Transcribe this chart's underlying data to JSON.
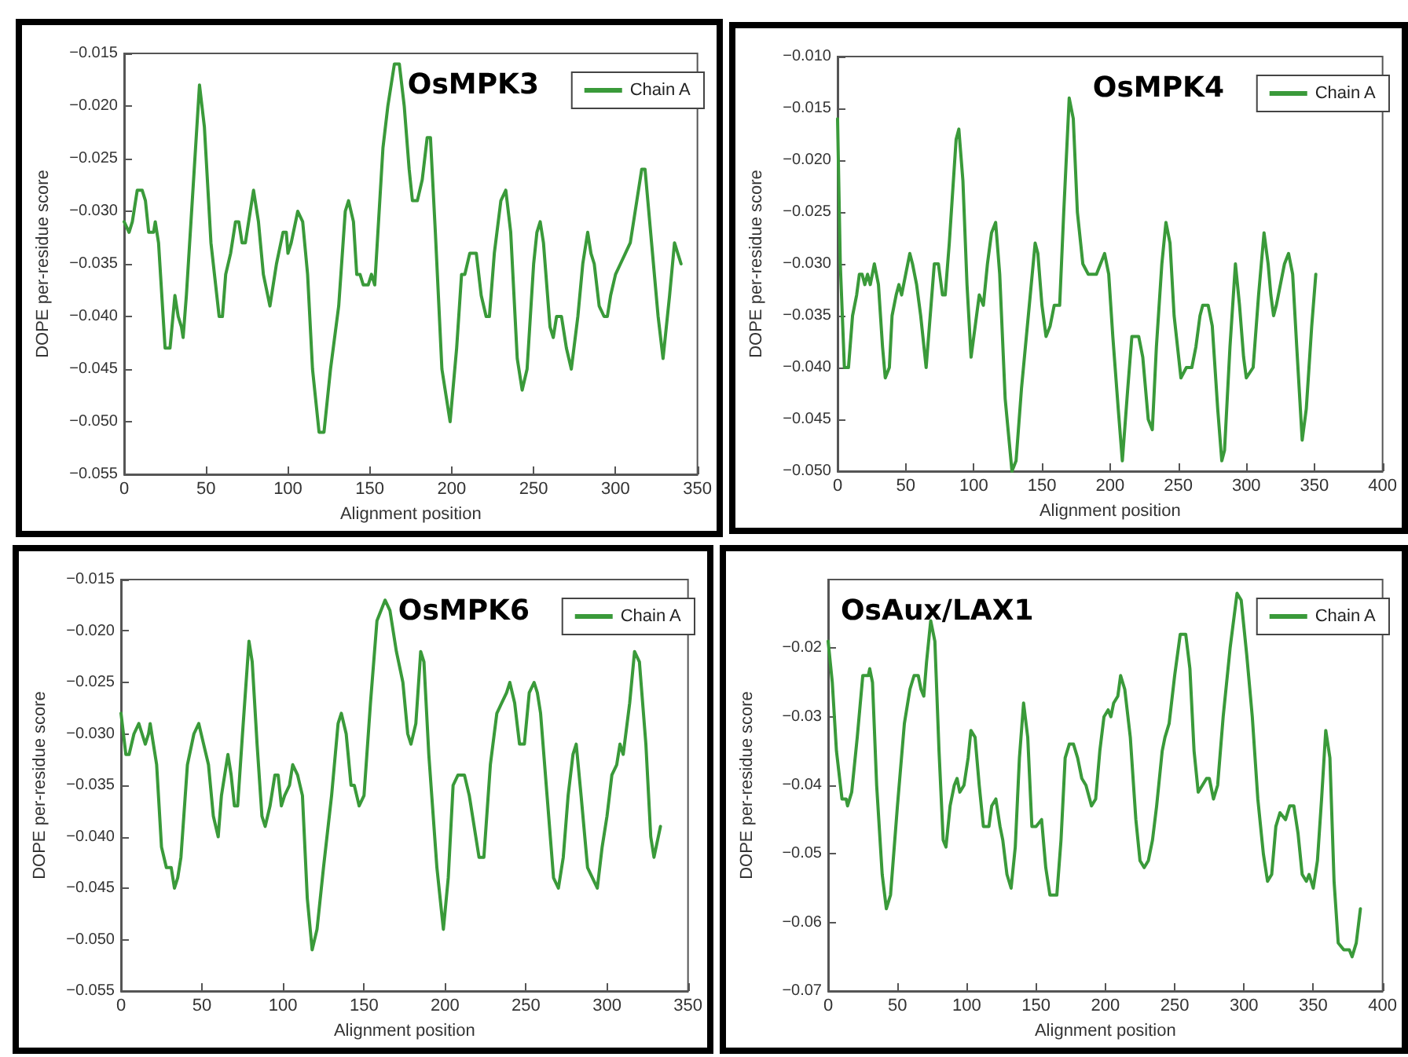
{
  "chart_data": [
    {
      "type": "line",
      "title": "OsMPK3",
      "xlabel": "Alignment position",
      "ylabel": "DOPE per-residue score",
      "xlim": [
        0,
        350
      ],
      "xticks": [
        0,
        50,
        100,
        150,
        200,
        250,
        300,
        350
      ],
      "ylim": [
        -0.055,
        -0.015
      ],
      "yticks": [
        {
          "value": -0.055,
          "label": "−0.055"
        },
        {
          "value": -0.05,
          "label": "−0.050"
        },
        {
          "value": -0.045,
          "label": "−0.045"
        },
        {
          "value": -0.04,
          "label": "−0.040"
        },
        {
          "value": -0.035,
          "label": "−0.035"
        },
        {
          "value": -0.03,
          "label": "−0.030"
        },
        {
          "value": -0.025,
          "label": "−0.025"
        },
        {
          "value": -0.02,
          "label": "−0.020"
        },
        {
          "value": -0.015,
          "label": "−0.015"
        }
      ],
      "legend": "top right",
      "grid": false,
      "marker": "none",
      "line_style": "solid",
      "x": [
        0,
        3,
        5,
        8,
        11,
        13,
        15,
        18,
        19,
        21,
        25,
        28,
        31,
        33,
        35,
        36,
        38,
        42,
        46,
        49,
        53,
        58,
        60,
        62,
        65,
        68,
        70,
        72,
        74,
        76,
        79,
        80,
        82,
        85,
        89,
        93,
        97,
        99,
        100,
        102,
        106,
        109,
        112,
        115,
        119,
        122,
        126,
        131,
        135,
        137,
        140,
        142,
        144,
        146,
        149,
        151,
        153,
        158,
        161,
        165,
        168,
        171,
        174,
        176,
        179,
        182,
        185,
        187,
        190,
        194,
        199,
        203,
        206,
        208,
        211,
        215,
        218,
        221,
        223,
        226,
        230,
        233,
        236,
        240,
        243,
        246,
        250,
        252,
        254,
        256,
        260,
        262,
        264,
        267,
        270,
        273,
        277,
        280,
        283,
        285,
        287,
        290,
        293,
        295,
        297,
        300,
        303,
        306,
        309,
        312,
        316,
        318,
        322,
        326,
        329,
        333,
        336,
        338,
        340
      ],
      "series": [
        {
          "name": "Chain A",
          "color": "#3a9a3a",
          "values": [
            -0.031,
            -0.032,
            -0.031,
            -0.028,
            -0.028,
            -0.029,
            -0.032,
            -0.032,
            -0.031,
            -0.033,
            -0.043,
            -0.043,
            -0.038,
            -0.04,
            -0.041,
            -0.042,
            -0.038,
            -0.028,
            -0.018,
            -0.022,
            -0.033,
            -0.04,
            -0.04,
            -0.036,
            -0.034,
            -0.031,
            -0.031,
            -0.033,
            -0.033,
            -0.031,
            -0.028,
            -0.029,
            -0.031,
            -0.036,
            -0.039,
            -0.035,
            -0.032,
            -0.032,
            -0.034,
            -0.033,
            -0.03,
            -0.031,
            -0.036,
            -0.045,
            -0.051,
            -0.051,
            -0.045,
            -0.039,
            -0.03,
            -0.029,
            -0.031,
            -0.036,
            -0.036,
            -0.037,
            -0.037,
            -0.036,
            -0.037,
            -0.024,
            -0.02,
            -0.016,
            -0.016,
            -0.02,
            -0.026,
            -0.029,
            -0.029,
            -0.027,
            -0.023,
            -0.023,
            -0.032,
            -0.045,
            -0.05,
            -0.043,
            -0.036,
            -0.036,
            -0.034,
            -0.034,
            -0.038,
            -0.04,
            -0.04,
            -0.034,
            -0.029,
            -0.028,
            -0.032,
            -0.044,
            -0.047,
            -0.045,
            -0.035,
            -0.032,
            -0.031,
            -0.033,
            -0.041,
            -0.042,
            -0.04,
            -0.04,
            -0.043,
            -0.045,
            -0.04,
            -0.035,
            -0.032,
            -0.034,
            -0.035,
            -0.039,
            -0.04,
            -0.04,
            -0.038,
            -0.036,
            -0.035,
            -0.034,
            -0.033,
            -0.03,
            -0.026,
            -0.026,
            -0.033,
            -0.04,
            -0.044,
            -0.038,
            -0.033,
            -0.034,
            -0.035
          ]
        }
      ]
    },
    {
      "type": "line",
      "title": "OsMPK4",
      "xlabel": "Alignment position",
      "ylabel": "DOPE per-residue score",
      "xlim": [
        0,
        400
      ],
      "xticks": [
        0,
        50,
        100,
        150,
        200,
        250,
        300,
        350,
        400
      ],
      "ylim": [
        -0.05,
        -0.01
      ],
      "yticks": [
        {
          "value": -0.05,
          "label": "−0.050"
        },
        {
          "value": -0.045,
          "label": "−0.045"
        },
        {
          "value": -0.04,
          "label": "−0.040"
        },
        {
          "value": -0.035,
          "label": "−0.035"
        },
        {
          "value": -0.03,
          "label": "−0.030"
        },
        {
          "value": -0.025,
          "label": "−0.025"
        },
        {
          "value": -0.02,
          "label": "−0.020"
        },
        {
          "value": -0.015,
          "label": "−0.015"
        },
        {
          "value": -0.01,
          "label": "−0.010"
        }
      ],
      "legend": "top right",
      "grid": false,
      "marker": "none",
      "line_style": "solid",
      "x": [
        0,
        2,
        5,
        8,
        11,
        14,
        16,
        18,
        20,
        22,
        24,
        27,
        30,
        33,
        35,
        38,
        40,
        43,
        45,
        47,
        50,
        53,
        55,
        58,
        61,
        65,
        68,
        71,
        74,
        77,
        79,
        82,
        87,
        89,
        92,
        95,
        98,
        101,
        104,
        107,
        110,
        113,
        116,
        119,
        123,
        128,
        131,
        135,
        140,
        145,
        147,
        150,
        153,
        156,
        159,
        163,
        166,
        170,
        173,
        176,
        180,
        184,
        190,
        193,
        196,
        199,
        202,
        206,
        209,
        213,
        216,
        221,
        224,
        228,
        231,
        234,
        238,
        241,
        244,
        247,
        252,
        256,
        260,
        263,
        266,
        268,
        272,
        275,
        279,
        282,
        284,
        288,
        292,
        295,
        298,
        300,
        305,
        309,
        313,
        316,
        318,
        320,
        322,
        325,
        328,
        331,
        334,
        337,
        341,
        344,
        348,
        351
      ],
      "series": [
        {
          "name": "Chain A",
          "color": "#3a9a3a",
          "values": [
            -0.016,
            -0.03,
            -0.04,
            -0.04,
            -0.035,
            -0.033,
            -0.031,
            -0.031,
            -0.032,
            -0.031,
            -0.032,
            -0.03,
            -0.032,
            -0.038,
            -0.041,
            -0.04,
            -0.035,
            -0.033,
            -0.032,
            -0.033,
            -0.031,
            -0.029,
            -0.03,
            -0.032,
            -0.035,
            -0.04,
            -0.035,
            -0.03,
            -0.03,
            -0.033,
            -0.033,
            -0.028,
            -0.018,
            -0.017,
            -0.022,
            -0.032,
            -0.039,
            -0.036,
            -0.033,
            -0.034,
            -0.03,
            -0.027,
            -0.026,
            -0.031,
            -0.043,
            -0.05,
            -0.049,
            -0.042,
            -0.035,
            -0.028,
            -0.029,
            -0.034,
            -0.037,
            -0.036,
            -0.034,
            -0.034,
            -0.025,
            -0.014,
            -0.016,
            -0.025,
            -0.03,
            -0.031,
            -0.031,
            -0.03,
            -0.029,
            -0.031,
            -0.037,
            -0.044,
            -0.049,
            -0.042,
            -0.037,
            -0.037,
            -0.039,
            -0.045,
            -0.046,
            -0.038,
            -0.03,
            -0.026,
            -0.028,
            -0.035,
            -0.041,
            -0.04,
            -0.04,
            -0.038,
            -0.035,
            -0.034,
            -0.034,
            -0.036,
            -0.044,
            -0.049,
            -0.048,
            -0.038,
            -0.03,
            -0.034,
            -0.039,
            -0.041,
            -0.04,
            -0.033,
            -0.027,
            -0.03,
            -0.033,
            -0.035,
            -0.034,
            -0.032,
            -0.03,
            -0.029,
            -0.031,
            -0.038,
            -0.047,
            -0.044,
            -0.036,
            -0.031
          ]
        }
      ]
    },
    {
      "type": "line",
      "title": "OsMPK6",
      "xlabel": "Alignment position",
      "ylabel": "DOPE per-residue score",
      "xlim": [
        0,
        350
      ],
      "xticks": [
        0,
        50,
        100,
        150,
        200,
        250,
        300,
        350
      ],
      "ylim": [
        -0.055,
        -0.015
      ],
      "yticks": [
        {
          "value": -0.055,
          "label": "−0.055"
        },
        {
          "value": -0.05,
          "label": "−0.050"
        },
        {
          "value": -0.045,
          "label": "−0.045"
        },
        {
          "value": -0.04,
          "label": "−0.040"
        },
        {
          "value": -0.035,
          "label": "−0.035"
        },
        {
          "value": -0.03,
          "label": "−0.030"
        },
        {
          "value": -0.025,
          "label": "−0.025"
        },
        {
          "value": -0.02,
          "label": "−0.020"
        },
        {
          "value": -0.015,
          "label": "−0.015"
        }
      ],
      "legend": "top right",
      "grid": false,
      "marker": "none",
      "line_style": "solid",
      "x": [
        0,
        3,
        5,
        8,
        11,
        13,
        15,
        17,
        18,
        20,
        22,
        25,
        28,
        31,
        33,
        35,
        37,
        41,
        45,
        48,
        51,
        54,
        57,
        60,
        62,
        66,
        68,
        70,
        72,
        75,
        79,
        81,
        84,
        87,
        89,
        92,
        95,
        97,
        99,
        101,
        104,
        106,
        109,
        112,
        115,
        118,
        121,
        125,
        130,
        134,
        136,
        139,
        142,
        144,
        147,
        150,
        154,
        158,
        163,
        166,
        170,
        174,
        177,
        179,
        182,
        185,
        187,
        190,
        195,
        199,
        202,
        205,
        208,
        212,
        215,
        219,
        221,
        224,
        228,
        232,
        235,
        238,
        240,
        243,
        246,
        249,
        252,
        255,
        257,
        259,
        263,
        267,
        270,
        273,
        276,
        279,
        281,
        284,
        288,
        291,
        294,
        297,
        300,
        303,
        306,
        308,
        310,
        314,
        317,
        320,
        324,
        327,
        329,
        333
      ],
      "series": [
        {
          "name": "Chain A",
          "color": "#3a9a3a",
          "values": [
            -0.028,
            -0.032,
            -0.032,
            -0.03,
            -0.029,
            -0.03,
            -0.031,
            -0.03,
            -0.029,
            -0.031,
            -0.033,
            -0.041,
            -0.043,
            -0.043,
            -0.045,
            -0.044,
            -0.042,
            -0.033,
            -0.03,
            -0.029,
            -0.031,
            -0.033,
            -0.038,
            -0.04,
            -0.036,
            -0.032,
            -0.034,
            -0.037,
            -0.037,
            -0.03,
            -0.021,
            -0.023,
            -0.031,
            -0.038,
            -0.039,
            -0.037,
            -0.034,
            -0.034,
            -0.037,
            -0.036,
            -0.035,
            -0.033,
            -0.034,
            -0.036,
            -0.046,
            -0.051,
            -0.049,
            -0.043,
            -0.036,
            -0.029,
            -0.028,
            -0.03,
            -0.035,
            -0.035,
            -0.037,
            -0.036,
            -0.027,
            -0.019,
            -0.017,
            -0.018,
            -0.022,
            -0.025,
            -0.03,
            -0.031,
            -0.029,
            -0.022,
            -0.023,
            -0.032,
            -0.043,
            -0.049,
            -0.044,
            -0.035,
            -0.034,
            -0.034,
            -0.036,
            -0.04,
            -0.042,
            -0.042,
            -0.033,
            -0.028,
            -0.027,
            -0.026,
            -0.025,
            -0.027,
            -0.031,
            -0.031,
            -0.026,
            -0.025,
            -0.026,
            -0.028,
            -0.036,
            -0.044,
            -0.045,
            -0.042,
            -0.036,
            -0.032,
            -0.031,
            -0.036,
            -0.043,
            -0.044,
            -0.045,
            -0.041,
            -0.038,
            -0.034,
            -0.033,
            -0.031,
            -0.032,
            -0.027,
            -0.022,
            -0.023,
            -0.031,
            -0.04,
            -0.042,
            -0.039
          ]
        }
      ]
    },
    {
      "type": "line",
      "title": "OsAux/LAX1",
      "xlabel": "Alignment position",
      "ylabel": "DOPE per-residue score",
      "xlim": [
        0,
        400
      ],
      "xticks": [
        0,
        50,
        100,
        150,
        200,
        250,
        300,
        350,
        400
      ],
      "ylim": [
        -0.07,
        -0.01
      ],
      "yticks": [
        -0.07,
        -0.06,
        -0.05,
        -0.04,
        -0.03,
        -0.02
      ],
      "legend": "top right",
      "grid": false,
      "marker": "none",
      "line_style": "solid",
      "x": [
        0,
        3,
        6,
        10,
        13,
        14,
        17,
        21,
        25,
        29,
        30,
        32,
        35,
        39,
        42,
        45,
        50,
        55,
        59,
        62,
        65,
        67,
        69,
        71,
        74,
        77,
        80,
        83,
        85,
        88,
        91,
        93,
        95,
        98,
        101,
        103,
        106,
        109,
        112,
        116,
        118,
        121,
        124,
        126,
        129,
        132,
        135,
        138,
        141,
        144,
        147,
        150,
        154,
        157,
        160,
        165,
        168,
        171,
        174,
        177,
        180,
        183,
        186,
        190,
        193,
        196,
        199,
        202,
        204,
        206,
        209,
        211,
        214,
        218,
        222,
        225,
        228,
        231,
        234,
        237,
        241,
        243,
        246,
        250,
        254,
        258,
        261,
        264,
        267,
        270,
        273,
        275,
        278,
        281,
        285,
        290,
        295,
        298,
        302,
        306,
        310,
        314,
        317,
        320,
        323,
        326,
        330,
        333,
        336,
        339,
        342,
        345,
        347,
        350,
        353,
        356,
        359,
        362,
        365,
        368,
        372,
        376,
        378,
        381,
        384
      ],
      "series": [
        {
          "name": "Chain A",
          "color": "#3a9a3a",
          "values": [
            -0.019,
            -0.025,
            -0.035,
            -0.042,
            -0.042,
            -0.043,
            -0.041,
            -0.033,
            -0.024,
            -0.024,
            -0.023,
            -0.025,
            -0.04,
            -0.053,
            -0.058,
            -0.056,
            -0.043,
            -0.031,
            -0.026,
            -0.024,
            -0.024,
            -0.026,
            -0.027,
            -0.022,
            -0.016,
            -0.019,
            -0.035,
            -0.048,
            -0.049,
            -0.043,
            -0.04,
            -0.039,
            -0.041,
            -0.04,
            -0.036,
            -0.032,
            -0.033,
            -0.04,
            -0.046,
            -0.046,
            -0.043,
            -0.042,
            -0.046,
            -0.048,
            -0.053,
            -0.055,
            -0.049,
            -0.036,
            -0.028,
            -0.033,
            -0.046,
            -0.046,
            -0.045,
            -0.052,
            -0.056,
            -0.056,
            -0.048,
            -0.036,
            -0.034,
            -0.034,
            -0.036,
            -0.039,
            -0.04,
            -0.043,
            -0.042,
            -0.035,
            -0.03,
            -0.029,
            -0.03,
            -0.028,
            -0.027,
            -0.024,
            -0.026,
            -0.033,
            -0.045,
            -0.051,
            -0.052,
            -0.051,
            -0.048,
            -0.043,
            -0.035,
            -0.033,
            -0.031,
            -0.024,
            -0.018,
            -0.018,
            -0.023,
            -0.035,
            -0.041,
            -0.04,
            -0.039,
            -0.039,
            -0.042,
            -0.04,
            -0.03,
            -0.02,
            -0.012,
            -0.013,
            -0.021,
            -0.03,
            -0.042,
            -0.05,
            -0.054,
            -0.053,
            -0.046,
            -0.044,
            -0.045,
            -0.043,
            -0.043,
            -0.047,
            -0.053,
            -0.054,
            -0.053,
            -0.055,
            -0.051,
            -0.042,
            -0.032,
            -0.036,
            -0.054,
            -0.063,
            -0.064,
            -0.064,
            -0.065,
            -0.063,
            -0.058
          ]
        }
      ]
    }
  ]
}
